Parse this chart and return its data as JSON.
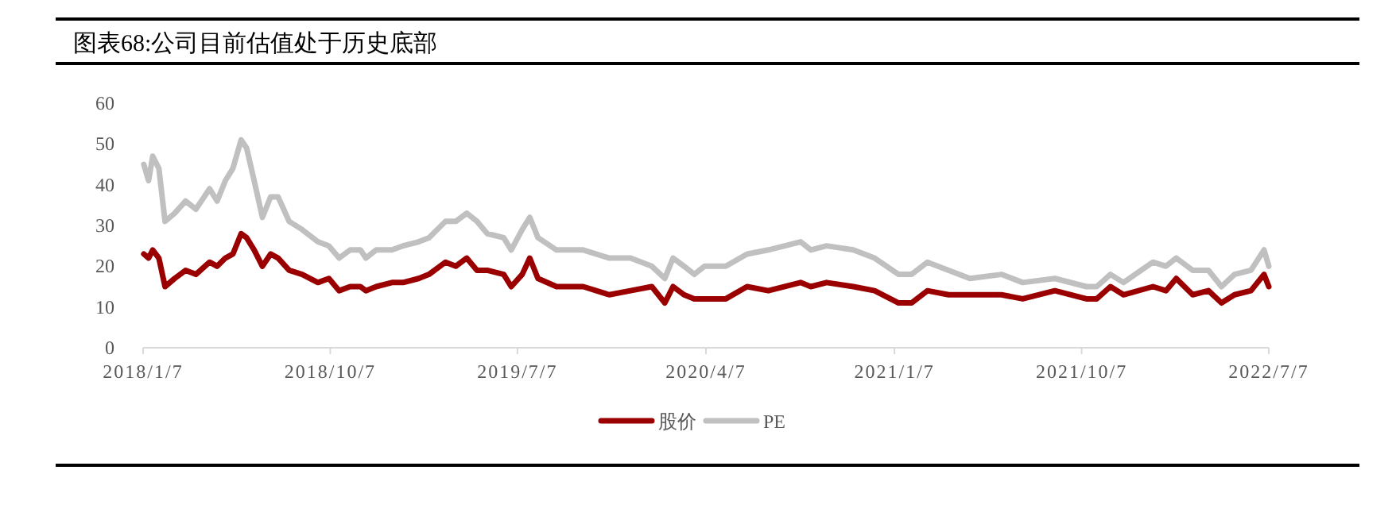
{
  "chart_data": {
    "type": "line",
    "title": "图表68:公司目前估值处于历史底部",
    "xlim": [
      "2018-01-07",
      "2022-07-07"
    ],
    "xticks": [
      {
        "value": "2018-01-07",
        "label": "2018/1/7"
      },
      {
        "value": "2018-10-07",
        "label": "2018/10/7"
      },
      {
        "value": "2019-07-07",
        "label": "2019/7/7"
      },
      {
        "value": "2020-04-07",
        "label": "2020/4/7"
      },
      {
        "value": "2021-01-07",
        "label": "2021/1/7"
      },
      {
        "value": "2021-10-07",
        "label": "2021/10/7"
      },
      {
        "value": "2022-07-07",
        "label": "2022/7/7"
      }
    ],
    "ylim": [
      0,
      60
    ],
    "yticks": [
      0,
      10,
      20,
      30,
      40,
      50,
      60
    ],
    "grid": false,
    "legend": "bottom",
    "marker": "none",
    "line_style": "solid",
    "x": [
      "2018-01-08",
      "2018-01-15",
      "2018-01-21",
      "2018-01-30",
      "2018-02-08",
      "2018-02-22",
      "2018-03-10",
      "2018-03-25",
      "2018-04-14",
      "2018-04-25",
      "2018-05-07",
      "2018-05-18",
      "2018-05-30",
      "2018-06-07",
      "2018-06-18",
      "2018-06-30",
      "2018-07-12",
      "2018-07-23",
      "2018-08-08",
      "2018-08-27",
      "2018-09-19",
      "2018-10-05",
      "2018-10-20",
      "2018-11-05",
      "2018-11-20",
      "2018-11-28",
      "2018-12-13",
      "2019-01-05",
      "2019-01-21",
      "2019-02-13",
      "2019-02-28",
      "2019-03-24",
      "2019-04-08",
      "2019-04-24",
      "2019-05-09",
      "2019-05-24",
      "2019-06-17",
      "2019-06-28",
      "2019-07-14",
      "2019-07-25",
      "2019-08-06",
      "2019-09-02",
      "2019-10-11",
      "2019-11-18",
      "2019-12-19",
      "2020-01-19",
      "2020-02-07",
      "2020-02-19",
      "2020-03-06",
      "2020-03-21",
      "2020-04-05",
      "2020-05-06",
      "2020-06-06",
      "2020-07-07",
      "2020-08-23",
      "2020-09-07",
      "2020-09-30",
      "2020-11-08",
      "2020-12-09",
      "2021-01-13",
      "2021-02-01",
      "2021-02-24",
      "2021-03-27",
      "2021-04-27",
      "2021-06-12",
      "2021-07-13",
      "2021-08-29",
      "2021-10-14",
      "2021-10-29",
      "2021-11-18",
      "2021-12-07",
      "2022-01-19",
      "2022-02-07",
      "2022-02-22",
      "2022-03-18",
      "2022-04-10",
      "2022-04-29",
      "2022-05-18",
      "2022-06-11",
      "2022-06-30",
      "2022-07-07"
    ],
    "series": [
      {
        "name": "股价",
        "color": "#9b0000",
        "values": [
          23,
          22,
          24,
          22,
          15,
          17,
          19,
          18,
          21,
          20,
          22,
          23,
          28,
          27,
          24,
          20,
          23,
          22,
          19,
          18,
          16,
          17,
          14,
          15,
          15,
          14,
          15,
          16,
          16,
          17,
          18,
          21,
          20,
          22,
          19,
          19,
          18,
          15,
          18,
          22,
          17,
          15,
          15,
          13,
          14,
          15,
          11,
          15,
          13,
          12,
          12,
          12,
          15,
          14,
          16,
          15,
          16,
          15,
          14,
          11,
          11,
          14,
          13,
          13,
          13,
          12,
          14,
          12,
          12,
          15,
          13,
          15,
          14,
          17,
          13,
          14,
          11,
          13,
          14,
          18,
          15
        ]
      },
      {
        "name": "PE",
        "color": "#c0c0c0",
        "values": [
          45,
          41,
          47,
          44,
          31,
          33,
          36,
          34,
          39,
          36,
          41,
          44,
          51,
          49,
          41,
          32,
          37,
          37,
          31,
          29,
          26,
          25,
          22,
          24,
          24,
          22,
          24,
          24,
          25,
          26,
          27,
          31,
          31,
          33,
          31,
          28,
          27,
          24,
          29,
          32,
          27,
          24,
          24,
          22,
          22,
          20,
          17,
          22,
          20,
          18,
          20,
          20,
          23,
          24,
          26,
          24,
          25,
          24,
          22,
          18,
          18,
          21,
          19,
          17,
          18,
          16,
          17,
          15,
          15,
          18,
          16,
          21,
          20,
          22,
          19,
          19,
          15,
          18,
          19,
          24,
          20
        ]
      }
    ]
  }
}
